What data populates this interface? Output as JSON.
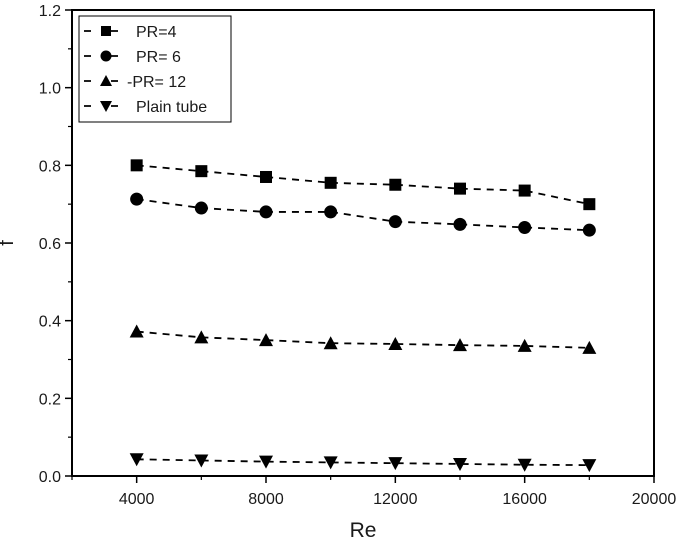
{
  "chart_data": {
    "type": "line",
    "title": "",
    "xlabel": "Re",
    "ylabel": "f",
    "xlim": [
      2000,
      20000
    ],
    "ylim": [
      0.0,
      1.2
    ],
    "x_ticks": [
      4000,
      8000,
      12000,
      16000,
      20000
    ],
    "x_tick_labels": [
      "4000",
      "8000",
      "12000",
      "16000",
      "20000"
    ],
    "x_minor_ticks": [
      2000,
      6000,
      10000,
      14000,
      18000
    ],
    "y_ticks": [
      0.0,
      0.2,
      0.4,
      0.6,
      0.8,
      1.0,
      1.2
    ],
    "y_tick_labels": [
      "0.0",
      "0.2",
      "0.4",
      "0.6",
      "0.8",
      "1.0",
      "1.2"
    ],
    "y_minor_ticks": [
      0.1,
      0.3,
      0.5,
      0.7,
      0.9,
      1.1
    ],
    "grid": false,
    "legend_position": "upper left",
    "x": [
      4000,
      6000,
      8000,
      10000,
      12000,
      14000,
      16000,
      18000
    ],
    "series": [
      {
        "name": "PR=4",
        "legend_label": "PR=4",
        "marker": "square",
        "line": "dashed",
        "color": "#000000",
        "values": [
          0.8,
          0.785,
          0.77,
          0.755,
          0.75,
          0.74,
          0.735,
          0.7
        ]
      },
      {
        "name": "PR= 6",
        "legend_label": "PR= 6",
        "marker": "circle",
        "line": "dashed",
        "color": "#000000",
        "values": [
          0.713,
          0.69,
          0.68,
          0.68,
          0.655,
          0.648,
          0.64,
          0.633
        ]
      },
      {
        "name": "PR= 12",
        "legend_label": "PR= 12",
        "marker": "triangle-up",
        "line": "dashed",
        "color": "#000000",
        "values": [
          0.372,
          0.357,
          0.35,
          0.342,
          0.34,
          0.337,
          0.335,
          0.33
        ]
      },
      {
        "name": "Plain tube",
        "legend_label": "Plain tube",
        "marker": "triangle-down",
        "line": "dashed",
        "color": "#000000",
        "values": [
          0.043,
          0.04,
          0.037,
          0.035,
          0.033,
          0.031,
          0.029,
          0.028
        ]
      }
    ]
  }
}
